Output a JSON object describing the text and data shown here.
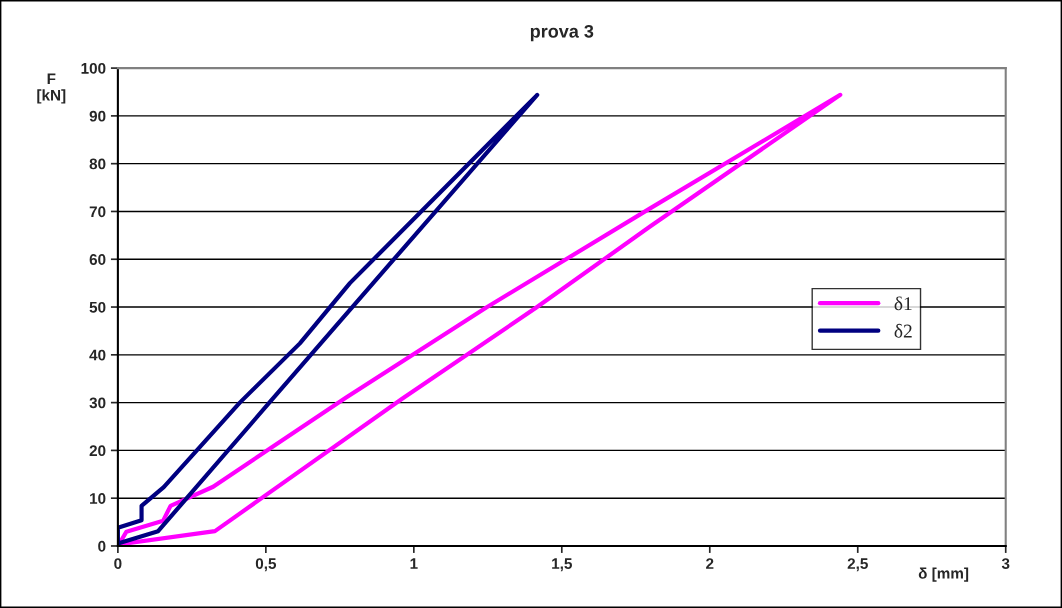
{
  "chart_data": {
    "type": "line",
    "title": "prova 3",
    "xlabel": "δ [mm]",
    "ylabel": "F\n[kN]",
    "series": [
      {
        "name": "δ1",
        "color": "#ff00ff",
        "x": [
          0,
          0.029,
          0.153,
          0.178,
          0.322,
          0.514,
          0.77,
          1.245,
          1.797,
          2.441,
          1.797,
          1.414,
          0.958,
          0.328,
          0
        ],
        "values": [
          0,
          3.0,
          5.3,
          8.4,
          12.4,
          20.4,
          31,
          49.9,
          70.6,
          94.4,
          66.8,
          49.9,
          30.7,
          3.1,
          0.3
        ]
      },
      {
        "name": "δ2",
        "color": "#000080",
        "x": [
          0,
          0,
          0.08,
          0.08,
          0.155,
          0.412,
          0.615,
          0.784,
          1.417,
          0.93,
          0.519,
          0.136,
          0
        ],
        "values": [
          0,
          3.8,
          5.4,
          8.4,
          12.3,
          30,
          42.4,
          55,
          94.4,
          59.8,
          30.5,
          3.1,
          0.5
        ]
      }
    ],
    "xlim": [
      0,
      3
    ],
    "xticks": [
      0,
      {
        "value": 0.5,
        "label": "0,5"
      },
      1,
      {
        "value": 1.5,
        "label": "1,5"
      },
      2,
      {
        "value": 2.5,
        "label": "2,5"
      },
      3
    ],
    "ylim": [
      0,
      100
    ],
    "yticks": [
      0,
      10,
      20,
      30,
      40,
      50,
      60,
      70,
      80,
      90,
      100
    ],
    "grid": "y",
    "legend": "center right",
    "marker": "none",
    "line_style": "solid"
  }
}
